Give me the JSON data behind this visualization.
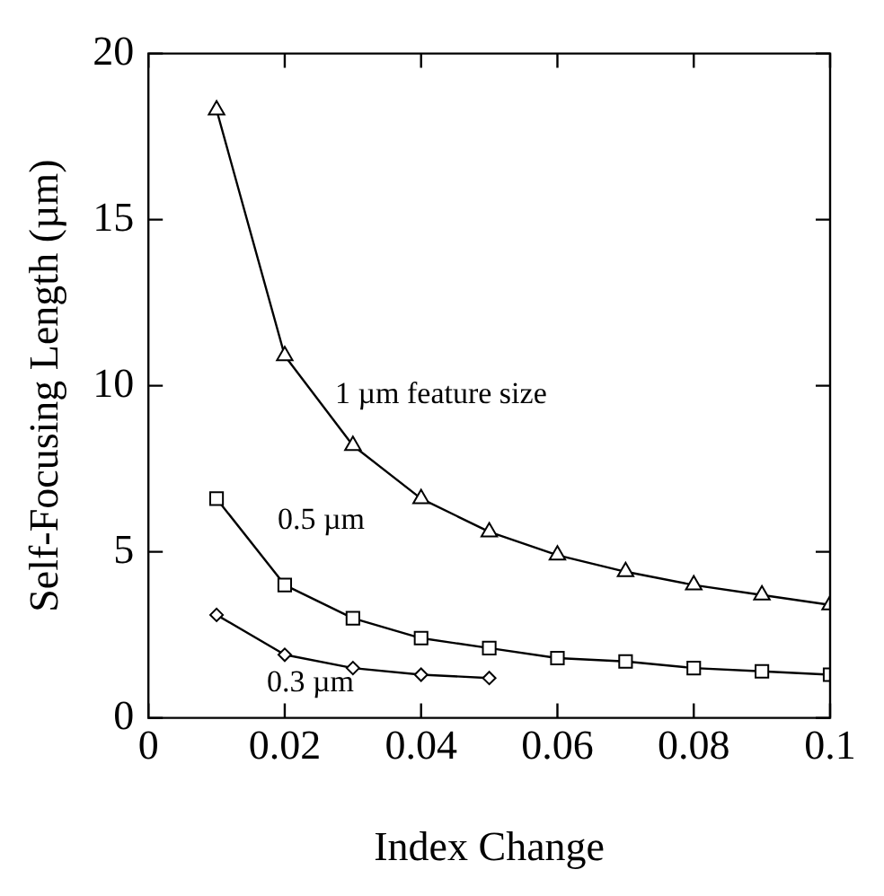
{
  "chart_data": {
    "type": "line",
    "xlabel": "Index Change",
    "ylabel": "Self-Focusing Length (µm)",
    "xlim": [
      0,
      0.1
    ],
    "xticks": [
      0,
      0.02,
      0.04,
      0.06,
      0.08,
      0.1
    ],
    "ylim": [
      0,
      20
    ],
    "yticks": [
      0,
      5,
      10,
      15,
      20
    ],
    "grid": false,
    "legend": false,
    "series": [
      {
        "name": "1 µm feature size",
        "color": "#000000",
        "marker": "triangle",
        "x": [
          0.01,
          0.02,
          0.03,
          0.04,
          0.05,
          0.06,
          0.07,
          0.08,
          0.09,
          0.1
        ],
        "values": [
          18.3,
          10.9,
          8.2,
          6.6,
          5.6,
          4.9,
          4.4,
          4.0,
          3.7,
          3.4
        ]
      },
      {
        "name": "0.5 µm",
        "color": "#000000",
        "marker": "square",
        "x": [
          0.01,
          0.02,
          0.03,
          0.04,
          0.05,
          0.06,
          0.07,
          0.08,
          0.09,
          0.1
        ],
        "values": [
          6.6,
          4.0,
          3.0,
          2.4,
          2.1,
          1.8,
          1.7,
          1.5,
          1.4,
          1.3
        ]
      },
      {
        "name": "0.3 µm",
        "color": "#000000",
        "marker": "diamond",
        "x": [
          0.01,
          0.02,
          0.03,
          0.04,
          0.05
        ],
        "values": [
          3.1,
          1.9,
          1.5,
          1.3,
          1.2
        ]
      }
    ]
  }
}
